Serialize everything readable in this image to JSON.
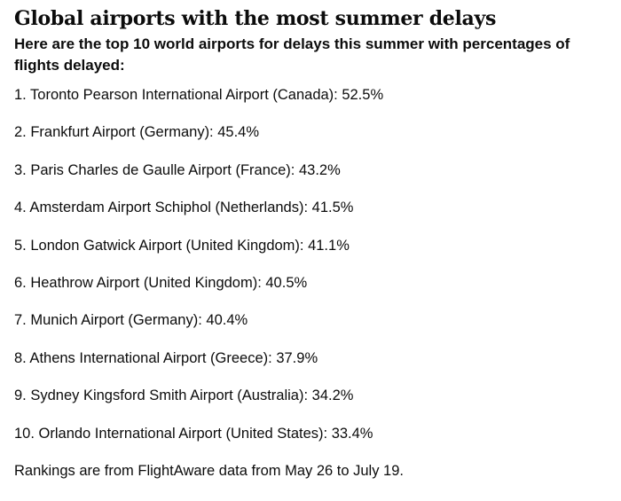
{
  "article": {
    "headline": "Global airports with the most summer delays",
    "intro": "Here are the top 10 world airports for delays this summer with percentages of flights delayed:",
    "items": [
      "1. Toronto Pearson International Airport (Canada): 52.5%",
      "2. Frankfurt Airport (Germany): 45.4%",
      "3. Paris Charles de Gaulle Airport (France): 43.2%",
      "4. Amsterdam Airport Schiphol (Netherlands): 41.5%",
      "5. London Gatwick Airport (United Kingdom): 41.1%",
      "6. Heathrow Airport (United Kingdom): 40.5%",
      "7. Munich Airport (Germany): 40.4%",
      "8. Athens International Airport (Greece): 37.9%",
      "9. Sydney Kingsford Smith Airport (Australia): 34.2%",
      "10. Orlando International Airport (United States): 33.4%"
    ],
    "footnote": "Rankings are from FlightAware data from May 26 to July 19."
  }
}
